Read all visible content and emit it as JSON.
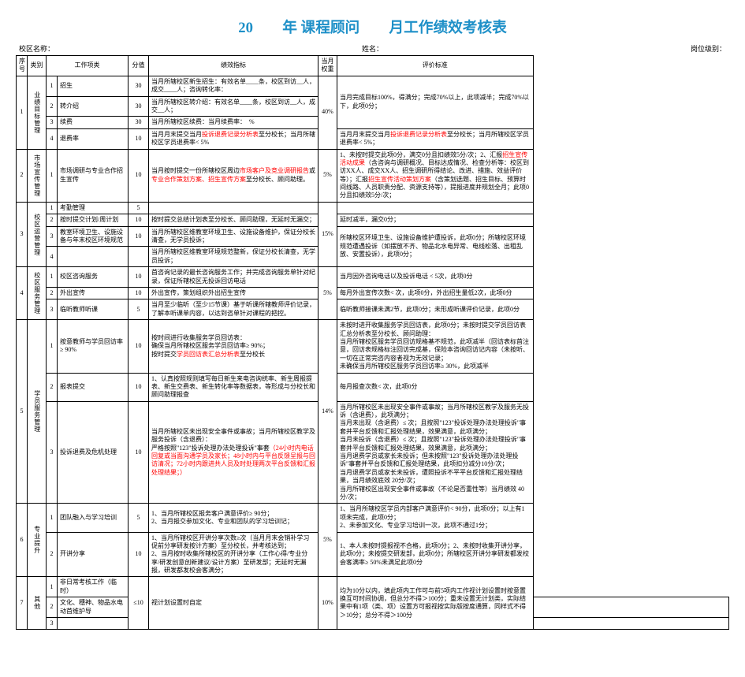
{
  "title": {
    "text": "20　　年 课程顾问　　月工作绩效考核表",
    "color": "#1e90c8",
    "fontsize_pt": 14
  },
  "meta": {
    "campus_label": "校区名称：",
    "name_label": "姓名：",
    "rank_label": "岗位级别："
  },
  "header": {
    "seq": "序号",
    "cat": "类别",
    "item": "工作项类",
    "score": "分值",
    "indicator": "绩效指标",
    "weight": "当月权重",
    "standard": "评价标准"
  },
  "groups": [
    {
      "seq": "1",
      "cat": "业绩目标管理",
      "weight": "40%",
      "rows": [
        {
          "n": "1",
          "item": "招生",
          "score": "30",
          "ind": "当月所辖校区新生招生：有效名单____条，校区到访__人，成交____人；咨询转化率：",
          "std_span": 3,
          "std": "当月完成目标100%，得满分；完成70%以上，此项减半；完成70%以下，此项0分；"
        },
        {
          "n": "2",
          "item": "转介绍",
          "score": "30",
          "ind": "当月所辖校区转介绍：有效名单____条，校区到访__人，成交__人；"
        },
        {
          "n": "3",
          "item": "续费",
          "score": "30",
          "ind": "当月所辖校区续费：当月续费率：　%"
        },
        {
          "n": "4",
          "item": "退费率",
          "score": "10",
          "ind_pre": "当月月末提交当月",
          "ind_red": "投诉退费记录分析表",
          "ind_post": "至分校长；当月所辖校区学员退费率< 5%",
          "std": "当月月末提交当月<span class='red'>投诉退费记录分析表</span>至分校长；当月所辖校区学员退费率< 5%；"
        }
      ]
    },
    {
      "seq": "2",
      "cat": "市场宣传管理",
      "weight": "5%",
      "rows": [
        {
          "n": "1",
          "item": "市场调研与专业合作招生宣传",
          "score": "10",
          "ind_pre": "当月按时提交一份所辖校区周边",
          "ind_red1": "市场客户及竞业调研报告",
          "ind_mid": "或",
          "ind_red2": "专业合作策划方案、招生宣传方案",
          "ind_post": "至分校长、顾问助理。",
          "std": "1、未按时提交此项0分，满交0分且扣绩效5分/次；2、汇报<span class='red'>招生宣传活动成果</span>（含咨询与调研概况、目标达成情况、检查分析等：校区到访XX人、成交XX人、招生调研所得结论、改进、措施、效益评价等）；汇报<span class='red'>招生宣传活动策划方案</span>（含策划选题、招生目标、预算时间线路、人员职责分配、资源支持等），提报进度并规划全月；此项0分且扣绩效5分/次；"
        }
      ]
    },
    {
      "seq": "3",
      "cat": "校区运营管理",
      "weight": "15%",
      "rows": [
        {
          "n": "1",
          "item": "考勤管理",
          "score": "5",
          "ind": "",
          "std": ""
        },
        {
          "n": "2",
          "item": "按时提交计划/周计划",
          "score": "10",
          "ind": "按时提交总结计划表至分校长、顾问助理，无延时无漏交；",
          "std": "延时减半，漏交0分；"
        },
        {
          "n": "3",
          "item": "教室环境卫生、设施设备与年末校区环境规范",
          "score": "10",
          "ind": "当月所辖校区维教室环境卫生、设施设备维护，保证分校长清查，无学员投诉；",
          "std_span": 2,
          "std": "所辖校区环境卫生、设施设备维护遭投诉，此项0分；所辖校区环境规范遭遇投诉（如摆放不齐、物品北水电异常、电线松落、出租乱放、安置投诉），此项0分；"
        },
        {
          "n": "4",
          "item": "",
          "score": "",
          "ind": "当月所辖校区维教室环境规范整新，保证分校长清查，无学员投诉；"
        }
      ]
    },
    {
      "seq": "4",
      "cat": "校区服务管理",
      "weight": "5%",
      "rows": [
        {
          "n": "1",
          "item": "校区咨询服务",
          "score": "10",
          "ind": "首咨询记录的最长咨询服务工作；并完成咨询服务单针对纪录，保证所辖校区无投诉回访电话",
          "std": "当月因外咨询电话以及投诉电话 < 5次，此项0分"
        },
        {
          "n": "2",
          "item": "外出宣传",
          "score": "10",
          "ind": "外出宣传，策划组织外出招生宣传",
          "std": "每月外出宣传次数< 次，此项0分，外出招生量低2次，此项0分"
        },
        {
          "n": "3",
          "item": "临听教师听课",
          "score": "5",
          "ind": "当月至少临听（至少15节课）基于听课所辖教师评价记录，了解本听课单内容，以达到咨单针对课程的把控。",
          "std": "临听教师接课未满2节，此项0分；未形成听课评价记录，此项0分"
        }
      ]
    },
    {
      "seq": "5",
      "cat": "学员服务管理",
      "weight": "14%",
      "rows": [
        {
          "n": "1",
          "item": "按意教师与学员回访率≥ 90%",
          "score": "10",
          "ind": "按时间进行收集服务学员回访表：<br>确保当月所辖校区服务学员回访率≥ 90%；<br>按时提交<span class='red'>学员回访表汇总分析表</span>至分校长",
          "std": "未按时进开收集服务学员回访表，此项0分；未按时提交学员回访表汇总分析表至分校长、顾问助理：<br>当月所辖校区服务学员回访规格基不规范，此项减半（回访表标首注意，回访表规格标注回访完成基，保险本咨询回访记内容（未按听、一切在正常完咨内容者视为无效记录；<br>未确保当月所辖校区服务学员回访率≥ 30%，此项减半"
        },
        {
          "n": "2",
          "item": "报表提交",
          "score": "10",
          "ind": "1、认真按照规则填写每日新生来电咨询统率、新生周报提表、新生交费表、新生转化率等数据表，等形成与分校长和顾问助理报查",
          "std": "每月报查次数< 次，此项0分"
        },
        {
          "n": "3",
          "item": "投诉退费及危机处理",
          "score": "10",
          "ind": "当月所辖校区未出现安全事件或事故；当月所辖校区教学及服务投诉（含退费）：<br>严格按照\"123\"投诉处理办法处理投诉\"事套<span class='red'>（24小时内电话回复或当面沟通学员及家长；48小时内与平台反馈呈报与回访清况；72小时内跟进共人员及时处理两次平台反馈和汇报处理结果；）</span>",
          "std": "当月所辖校区未出现安全事件或事故；当月所辖校区教学及服务无投诉（含退费），此项满分；<br>当月未出现（含退费）≤ 次；且按照\"123\"投诉处理办法处理投诉\"事套并平台反馈和汇报处理结果，效果满意，此项满分；<br>当月未投诉（含退费）≤ 次；且按照\"123\"投诉处理办法处理投诉\"事套并平台反馈和汇报处理结果，效果满意，此项满分；<br>当月退费学员或家长未投诉；但未按照\"123\"投诉处理办法处理投诉\"事套并平台反馈和汇报处理结果，此项扣分减分10分/次；<br>当月退费学员或家长未投诉，遭照投诉不平平台反馈和汇报处理结果，当月绩效底效 20分/次；<br>当月所辖校区出现安全事件或事故（不论是否重性等）当月绩效 40分/次；"
        }
      ]
    },
    {
      "seq": "6",
      "cat": "专业提升",
      "weight": "5%",
      "rows": [
        {
          "n": "1",
          "item": "团队融入与学习培训",
          "score": "5",
          "ind": "1、当月所辖校区报务客户满意评价≥ 90分；<br>2、当月报交参加文化、专业和团队的学习培训记；",
          "std": "1、当月所辖校区学员内部客户满意评价< 90分，此项0分；以上有1项未完成，此项0分；<br>2、未参加文化、专业学习培训一次，此项不通过1分；"
        },
        {
          "n": "2",
          "item": "开讲分享",
          "score": "10",
          "ind": "1、当月所辖校区开讲分享次数≥次（当月月末会销补学习促前分享研发按计方案）至分校长，并考核达到；<br>2、当月按时收集所辖校区的开讲分享（工作心得/专业分享/研发创意创新建议/设计方案）至研发部；无延时无漏报，研发都发校会客满分；",
          "std": "1、本人未按时提报视不合格，此项0分；2、未按时收集开讲分享，此项0分；未按提交研发部，此项0分；所辖校区开讲分享研发都发校会客满率≥ 50%未满足此项0分"
        }
      ]
    },
    {
      "seq": "7",
      "cat": "其他",
      "weight": "10%",
      "rows": [
        {
          "n": "1",
          "item": "非日常考核工作（临时）",
          "score_span": 3,
          "score": "≤10",
          "ind_span": 3,
          "ind": "视计划设置时自定",
          "std_span": 3,
          "std": "均为10分以内，填此项内工作可与前5项内工作视计划设置时按意置换互可时间协调，但总分不得＞100分；重未设置无计划类，实际结果中有1项（类、项）设置方可报视按实际版按度通算，同样式不得＞10分；总分不得＞100分"
        },
        {
          "n": "2",
          "item": "文化、穗神、物品水电动首维护导"
        },
        {
          "n": "3",
          "item": ""
        }
      ]
    }
  ]
}
